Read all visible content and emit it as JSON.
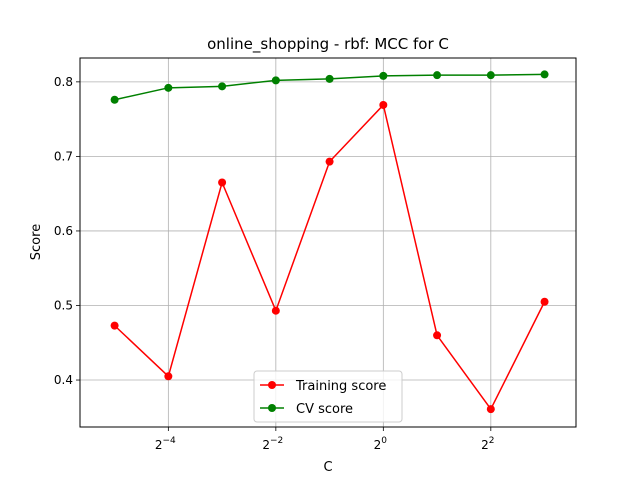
{
  "chart_data": {
    "type": "line",
    "title": "online_shopping - rbf: MCC for C",
    "xlabel": "C",
    "ylabel": "Score",
    "x_scale": "log2",
    "x": [
      0.03125,
      0.0625,
      0.125,
      0.25,
      0.5,
      1,
      2,
      4,
      8
    ],
    "xlim": [
      0.02,
      12
    ],
    "ylim": [
      0.337,
      0.832
    ],
    "x_ticks": [
      {
        "value": 0.0625,
        "base": "2",
        "exp": "−4"
      },
      {
        "value": 0.25,
        "base": "2",
        "exp": "−2"
      },
      {
        "value": 1,
        "base": "2",
        "exp": "0"
      },
      {
        "value": 4,
        "base": "2",
        "exp": "2"
      }
    ],
    "y_ticks": [
      0.4,
      0.5,
      0.6,
      0.7,
      0.8
    ],
    "y_tick_labels": [
      "0.4",
      "0.5",
      "0.6",
      "0.7",
      "0.8"
    ],
    "grid": true,
    "legend_position": "lower center",
    "series": [
      {
        "name": "Training score",
        "color": "#ff0000",
        "values": [
          0.473,
          0.405,
          0.665,
          0.493,
          0.693,
          0.769,
          0.46,
          0.361,
          0.505
        ]
      },
      {
        "name": "CV score",
        "color": "#008000",
        "values": [
          0.776,
          0.792,
          0.794,
          0.802,
          0.804,
          0.808,
          0.809,
          0.809,
          0.81
        ]
      }
    ]
  }
}
